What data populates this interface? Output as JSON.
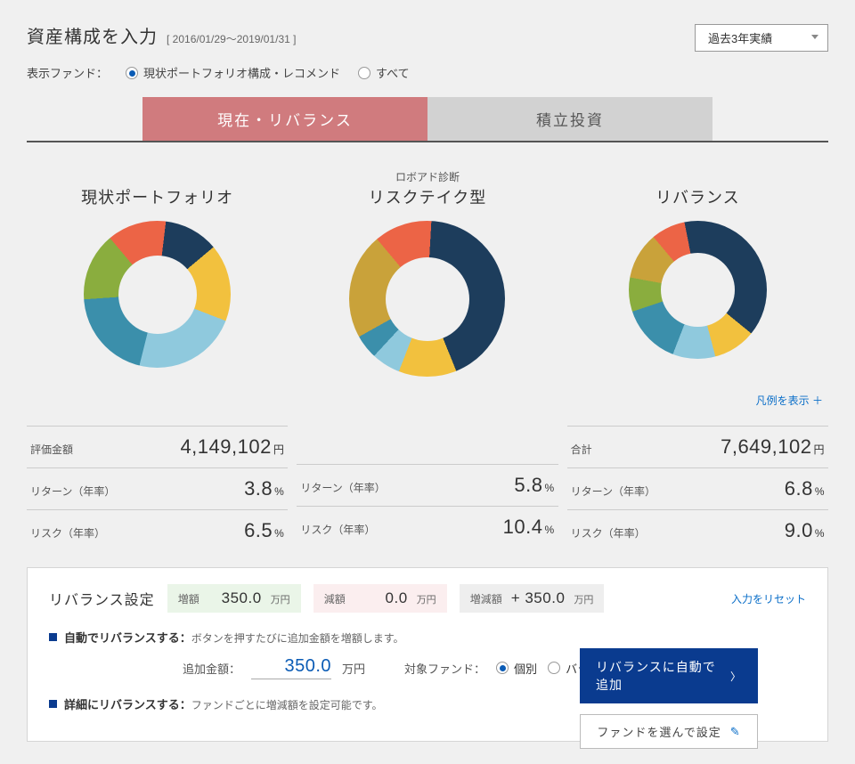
{
  "header": {
    "title": "資産構成を入力",
    "date_range": "[ 2016/01/29～2019/01/31 ]",
    "period_select": "過去3年実績"
  },
  "filter": {
    "label": "表示ファンド：",
    "option_current": "現状ポートフォリオ構成・レコメンド",
    "option_all": "すべて"
  },
  "tabs": {
    "active": "現在・リバランス",
    "inactive": "積立投資"
  },
  "charts": {
    "colors": {
      "orange": "#ec6446",
      "navy": "#1d3d5c",
      "yellow": "#f2c13e",
      "sky": "#8fc9dd",
      "teal": "#3b8fab",
      "green": "#8aad3e",
      "olive": "#c9a23a"
    },
    "current": {
      "subtitle": "",
      "title": "現状ポートフォリオ",
      "size": 165,
      "inner": 88,
      "slices": [
        {
          "color": "orange",
          "pct": 13
        },
        {
          "color": "navy",
          "pct": 12
        },
        {
          "color": "yellow",
          "pct": 17
        },
        {
          "color": "sky",
          "pct": 23
        },
        {
          "color": "teal",
          "pct": 20
        },
        {
          "color": "green",
          "pct": 15
        }
      ]
    },
    "robo": {
      "subtitle": "ロボアド診断",
      "title": "リスクテイク型",
      "size": 175,
      "inner": 94,
      "slices": [
        {
          "color": "orange",
          "pct": 12
        },
        {
          "color": "navy",
          "pct": 43
        },
        {
          "color": "yellow",
          "pct": 12
        },
        {
          "color": "sky",
          "pct": 6
        },
        {
          "color": "teal",
          "pct": 5
        },
        {
          "color": "olive",
          "pct": 22
        }
      ]
    },
    "rebalance": {
      "subtitle": "",
      "title": "リバランス",
      "size": 155,
      "inner": 83,
      "slices": [
        {
          "color": "orange",
          "pct": 8
        },
        {
          "color": "navy",
          "pct": 39
        },
        {
          "color": "yellow",
          "pct": 10
        },
        {
          "color": "sky",
          "pct": 10
        },
        {
          "color": "teal",
          "pct": 14
        },
        {
          "color": "green",
          "pct": 8
        },
        {
          "color": "olive",
          "pct": 11
        }
      ]
    }
  },
  "legend_link": "凡例を表示 ＋",
  "stats": {
    "labels": {
      "eval": "評価金額",
      "total": "合計",
      "return": "リターン（年率）",
      "risk": "リスク（年率）",
      "yen": "円",
      "pct": "%"
    },
    "current": {
      "eval": "4,149,102",
      "return": "3.8",
      "risk": "6.5"
    },
    "robo": {
      "return": "5.8",
      "risk": "10.4"
    },
    "rebalance": {
      "total": "7,649,102",
      "return": "6.8",
      "risk": "9.0"
    }
  },
  "settings": {
    "title": "リバランス設定",
    "chips": {
      "inc_label": "増額",
      "inc_value": "350.0",
      "inc_unit": "万円",
      "dec_label": "減額",
      "dec_value": "0.0",
      "dec_unit": "万円",
      "net_label": "増減額",
      "net_value": "+ 350.0",
      "net_unit": "万円"
    },
    "reset": "入力をリセット",
    "auto": {
      "heading": "自動でリバランスする：",
      "desc": "ボタンを押すたびに追加金額を増額します。",
      "add_label": "追加金額：",
      "add_value": "350.0",
      "add_unit": "万円",
      "target_label": "対象ファンド：",
      "target_opt_individual": "個別",
      "target_opt_balance": "バランス"
    },
    "detail": {
      "heading": "詳細にリバランスする：",
      "desc": "ファンドごとに増減額を設定可能です。"
    },
    "btn_primary": "リバランスに自動で追加",
    "btn_secondary": "ファンドを選んで設定"
  }
}
